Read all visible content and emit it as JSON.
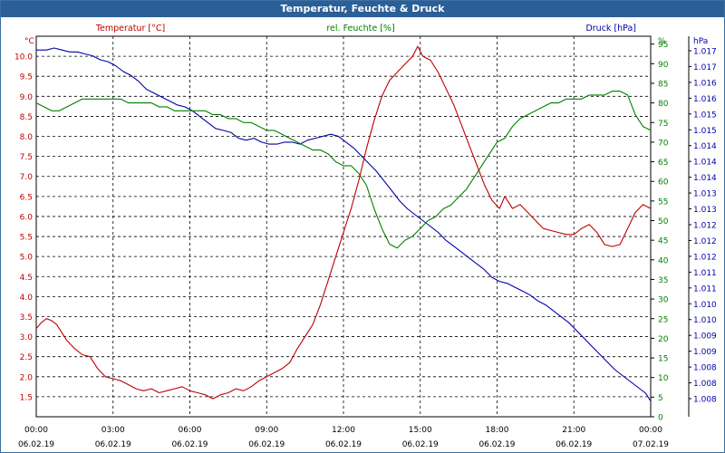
{
  "window": {
    "title": "Temperatur, Feuchte & Druck"
  },
  "chart_data": {
    "type": "line",
    "title": "Temperatur, Feuchte & Druck",
    "series_headers": {
      "temperature": "Temperatur [°C]",
      "humidity": "rel. Feuchte [%]",
      "pressure": "Druck [hPa]"
    },
    "axis_units": {
      "left": "°C",
      "right1": "%",
      "right2": "hPa"
    },
    "colors": {
      "temperature": "#c00000",
      "humidity": "#008000",
      "pressure": "#0000aa",
      "grid": "#000000",
      "frame": "#2a5f98"
    },
    "x_ticks": [
      {
        "time": "00:00",
        "date": "06.02.19"
      },
      {
        "time": "03:00",
        "date": "06.02.19"
      },
      {
        "time": "06:00",
        "date": "06.02.19"
      },
      {
        "time": "09:00",
        "date": "06.02.19"
      },
      {
        "time": "12:00",
        "date": "06.02.19"
      },
      {
        "time": "15:00",
        "date": "06.02.19"
      },
      {
        "time": "18:00",
        "date": "06.02.19"
      },
      {
        "time": "21:00",
        "date": "06.02.19"
      },
      {
        "time": "00:00",
        "date": "07.02.19"
      }
    ],
    "xlim_hours": [
      0,
      24
    ],
    "temp_ylim": [
      1.0,
      10.5
    ],
    "temp_ticks": [
      "1.5",
      "2.0",
      "2.5",
      "3.0",
      "3.5",
      "4.0",
      "4.5",
      "5.0",
      "5.5",
      "6.0",
      "6.5",
      "7.0",
      "7.5",
      "8.0",
      "8.5",
      "9.0",
      "9.5",
      "10.0"
    ],
    "hum_ylim": [
      0,
      97
    ],
    "hum_ticks": [
      "0",
      "5",
      "10",
      "15",
      "20",
      "25",
      "30",
      "35",
      "40",
      "45",
      "50",
      "55",
      "60",
      "65",
      "70",
      "75",
      "80",
      "85",
      "90",
      "95"
    ],
    "press_ylim": [
      1007.6,
      1017.3
    ],
    "press_ticks": [
      "1.008",
      "1.008",
      "1.008",
      "1.009",
      "1.009",
      "1.010",
      "1.010",
      "1.011",
      "1.011",
      "1.012",
      "1.012",
      "1.012",
      "1.013",
      "1.013",
      "1.014",
      "1.014",
      "1.014",
      "1.015",
      "1.015",
      "1.016",
      "1.016",
      "1.017",
      "1.017"
    ],
    "temperature": [
      [
        0.0,
        3.2
      ],
      [
        0.2,
        3.35
      ],
      [
        0.4,
        3.45
      ],
      [
        0.6,
        3.4
      ],
      [
        0.8,
        3.3
      ],
      [
        1.0,
        3.1
      ],
      [
        1.2,
        2.9
      ],
      [
        1.5,
        2.7
      ],
      [
        1.8,
        2.55
      ],
      [
        2.1,
        2.5
      ],
      [
        2.4,
        2.2
      ],
      [
        2.7,
        2.0
      ],
      [
        3.0,
        1.95
      ],
      [
        3.3,
        1.9
      ],
      [
        3.6,
        1.8
      ],
      [
        3.9,
        1.7
      ],
      [
        4.2,
        1.65
      ],
      [
        4.5,
        1.7
      ],
      [
        4.8,
        1.6
      ],
      [
        5.1,
        1.65
      ],
      [
        5.4,
        1.7
      ],
      [
        5.7,
        1.75
      ],
      [
        6.0,
        1.65
      ],
      [
        6.3,
        1.6
      ],
      [
        6.6,
        1.55
      ],
      [
        6.9,
        1.45
      ],
      [
        7.2,
        1.55
      ],
      [
        7.5,
        1.6
      ],
      [
        7.8,
        1.7
      ],
      [
        8.1,
        1.65
      ],
      [
        8.4,
        1.75
      ],
      [
        8.7,
        1.9
      ],
      [
        9.0,
        2.0
      ],
      [
        9.3,
        2.1
      ],
      [
        9.6,
        2.2
      ],
      [
        9.9,
        2.35
      ],
      [
        10.2,
        2.7
      ],
      [
        10.5,
        3.0
      ],
      [
        10.8,
        3.3
      ],
      [
        11.1,
        3.8
      ],
      [
        11.4,
        4.4
      ],
      [
        11.7,
        5.0
      ],
      [
        12.0,
        5.6
      ],
      [
        12.3,
        6.2
      ],
      [
        12.6,
        6.9
      ],
      [
        12.9,
        7.7
      ],
      [
        13.2,
        8.4
      ],
      [
        13.5,
        9.0
      ],
      [
        13.8,
        9.4
      ],
      [
        14.1,
        9.6
      ],
      [
        14.4,
        9.8
      ],
      [
        14.7,
        10.0
      ],
      [
        14.9,
        10.25
      ],
      [
        15.1,
        10.0
      ],
      [
        15.4,
        9.9
      ],
      [
        15.7,
        9.6
      ],
      [
        16.0,
        9.2
      ],
      [
        16.3,
        8.8
      ],
      [
        16.6,
        8.3
      ],
      [
        16.9,
        7.8
      ],
      [
        17.2,
        7.3
      ],
      [
        17.5,
        6.8
      ],
      [
        17.8,
        6.4
      ],
      [
        18.1,
        6.2
      ],
      [
        18.3,
        6.5
      ],
      [
        18.6,
        6.2
      ],
      [
        18.9,
        6.3
      ],
      [
        19.2,
        6.1
      ],
      [
        19.5,
        5.9
      ],
      [
        19.8,
        5.7
      ],
      [
        20.1,
        5.65
      ],
      [
        20.4,
        5.6
      ],
      [
        20.7,
        5.55
      ],
      [
        21.0,
        5.55
      ],
      [
        21.3,
        5.7
      ],
      [
        21.6,
        5.8
      ],
      [
        21.9,
        5.6
      ],
      [
        22.2,
        5.3
      ],
      [
        22.5,
        5.25
      ],
      [
        22.8,
        5.3
      ],
      [
        23.1,
        5.7
      ],
      [
        23.4,
        6.1
      ],
      [
        23.7,
        6.3
      ],
      [
        24.0,
        6.2
      ]
    ],
    "humidity": [
      [
        0.0,
        80
      ],
      [
        0.3,
        79
      ],
      [
        0.6,
        78
      ],
      [
        0.9,
        78
      ],
      [
        1.2,
        79
      ],
      [
        1.5,
        80
      ],
      [
        1.8,
        81
      ],
      [
        2.1,
        81
      ],
      [
        2.4,
        81
      ],
      [
        2.7,
        81
      ],
      [
        3.0,
        81
      ],
      [
        3.3,
        81
      ],
      [
        3.6,
        80
      ],
      [
        3.9,
        80
      ],
      [
        4.2,
        80
      ],
      [
        4.5,
        80
      ],
      [
        4.8,
        79
      ],
      [
        5.1,
        79
      ],
      [
        5.4,
        78
      ],
      [
        5.7,
        78
      ],
      [
        6.0,
        78
      ],
      [
        6.3,
        78
      ],
      [
        6.6,
        78
      ],
      [
        6.9,
        77
      ],
      [
        7.2,
        77
      ],
      [
        7.5,
        76
      ],
      [
        7.8,
        76
      ],
      [
        8.1,
        75
      ],
      [
        8.4,
        75
      ],
      [
        8.7,
        74
      ],
      [
        9.0,
        73
      ],
      [
        9.3,
        73
      ],
      [
        9.6,
        72
      ],
      [
        9.9,
        71
      ],
      [
        10.2,
        70
      ],
      [
        10.5,
        69
      ],
      [
        10.8,
        68
      ],
      [
        11.1,
        68
      ],
      [
        11.4,
        67
      ],
      [
        11.7,
        65
      ],
      [
        12.0,
        64
      ],
      [
        12.3,
        64
      ],
      [
        12.6,
        62
      ],
      [
        12.9,
        59
      ],
      [
        13.2,
        53
      ],
      [
        13.5,
        48
      ],
      [
        13.8,
        44
      ],
      [
        14.1,
        43
      ],
      [
        14.4,
        45
      ],
      [
        14.7,
        46
      ],
      [
        15.0,
        48
      ],
      [
        15.3,
        50
      ],
      [
        15.6,
        51
      ],
      [
        15.9,
        53
      ],
      [
        16.2,
        54
      ],
      [
        16.5,
        56
      ],
      [
        16.8,
        58
      ],
      [
        17.1,
        61
      ],
      [
        17.4,
        64
      ],
      [
        17.7,
        67
      ],
      [
        18.0,
        70
      ],
      [
        18.3,
        71
      ],
      [
        18.6,
        74
      ],
      [
        18.9,
        76
      ],
      [
        19.2,
        77
      ],
      [
        19.5,
        78
      ],
      [
        19.8,
        79
      ],
      [
        20.1,
        80
      ],
      [
        20.4,
        80
      ],
      [
        20.7,
        81
      ],
      [
        21.0,
        81
      ],
      [
        21.3,
        81
      ],
      [
        21.6,
        82
      ],
      [
        21.9,
        82
      ],
      [
        22.2,
        82
      ],
      [
        22.5,
        83
      ],
      [
        22.8,
        83
      ],
      [
        23.1,
        82
      ],
      [
        23.4,
        77
      ],
      [
        23.7,
        74
      ],
      [
        24.0,
        73
      ]
    ],
    "pressure": [
      [
        0.0,
        1016.95
      ],
      [
        0.4,
        1016.95
      ],
      [
        0.7,
        1017.0
      ],
      [
        1.0,
        1016.95
      ],
      [
        1.3,
        1016.9
      ],
      [
        1.6,
        1016.9
      ],
      [
        1.9,
        1016.85
      ],
      [
        2.2,
        1016.8
      ],
      [
        2.5,
        1016.7
      ],
      [
        2.8,
        1016.65
      ],
      [
        3.1,
        1016.55
      ],
      [
        3.4,
        1016.4
      ],
      [
        3.7,
        1016.3
      ],
      [
        4.0,
        1016.15
      ],
      [
        4.3,
        1015.95
      ],
      [
        4.6,
        1015.85
      ],
      [
        4.9,
        1015.75
      ],
      [
        5.2,
        1015.65
      ],
      [
        5.5,
        1015.55
      ],
      [
        5.8,
        1015.5
      ],
      [
        6.1,
        1015.4
      ],
      [
        6.4,
        1015.25
      ],
      [
        6.7,
        1015.1
      ],
      [
        7.0,
        1014.95
      ],
      [
        7.3,
        1014.9
      ],
      [
        7.6,
        1014.85
      ],
      [
        7.9,
        1014.7
      ],
      [
        8.2,
        1014.65
      ],
      [
        8.5,
        1014.7
      ],
      [
        8.8,
        1014.6
      ],
      [
        9.1,
        1014.55
      ],
      [
        9.4,
        1014.55
      ],
      [
        9.7,
        1014.6
      ],
      [
        10.0,
        1014.6
      ],
      [
        10.3,
        1014.55
      ],
      [
        10.6,
        1014.65
      ],
      [
        10.9,
        1014.7
      ],
      [
        11.2,
        1014.75
      ],
      [
        11.5,
        1014.8
      ],
      [
        11.8,
        1014.75
      ],
      [
        12.1,
        1014.6
      ],
      [
        12.4,
        1014.45
      ],
      [
        12.7,
        1014.25
      ],
      [
        13.0,
        1014.05
      ],
      [
        13.3,
        1013.85
      ],
      [
        13.6,
        1013.6
      ],
      [
        13.9,
        1013.35
      ],
      [
        14.2,
        1013.1
      ],
      [
        14.5,
        1012.9
      ],
      [
        14.8,
        1012.75
      ],
      [
        15.1,
        1012.6
      ],
      [
        15.4,
        1012.45
      ],
      [
        15.7,
        1012.3
      ],
      [
        16.0,
        1012.1
      ],
      [
        16.3,
        1011.95
      ],
      [
        16.6,
        1011.8
      ],
      [
        16.9,
        1011.65
      ],
      [
        17.2,
        1011.5
      ],
      [
        17.5,
        1011.35
      ],
      [
        17.8,
        1011.15
      ],
      [
        18.1,
        1011.05
      ],
      [
        18.4,
        1011.0
      ],
      [
        18.7,
        1010.9
      ],
      [
        19.0,
        1010.8
      ],
      [
        19.3,
        1010.7
      ],
      [
        19.6,
        1010.55
      ],
      [
        19.9,
        1010.45
      ],
      [
        20.2,
        1010.3
      ],
      [
        20.5,
        1010.15
      ],
      [
        20.8,
        1010.0
      ],
      [
        21.1,
        1009.8
      ],
      [
        21.4,
        1009.6
      ],
      [
        21.7,
        1009.4
      ],
      [
        22.0,
        1009.2
      ],
      [
        22.3,
        1009.0
      ],
      [
        22.6,
        1008.8
      ],
      [
        22.9,
        1008.65
      ],
      [
        23.2,
        1008.5
      ],
      [
        23.5,
        1008.35
      ],
      [
        23.8,
        1008.2
      ],
      [
        24.0,
        1008.0
      ]
    ]
  }
}
